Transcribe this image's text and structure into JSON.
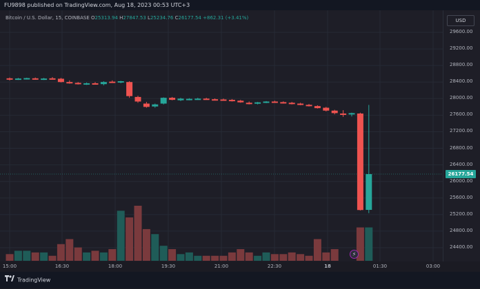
{
  "publish_bar": {
    "text": "FU9898 published on TradingView.com, Aug 18, 2023 00:53 UTC+3"
  },
  "legend": {
    "symbol": "Bitcoin / U.S. Dollar, 15, COINBASE",
    "o_label": "O",
    "o": "25313.94",
    "h_label": "H",
    "h": "27847.53",
    "l_label": "L",
    "l": "25234.76",
    "c_label": "C",
    "c": "26177.54",
    "change": "+862.31 (+3.41%)"
  },
  "currency_button": "USD",
  "price_axis": {
    "ticks": [
      "29600.00",
      "29200.00",
      "28800.00",
      "28400.00",
      "28000.00",
      "27600.00",
      "27200.00",
      "26800.00",
      "26400.00",
      "26000.00",
      "25600.00",
      "25200.00",
      "24800.00",
      "24400.00"
    ],
    "current_price": "26177.54"
  },
  "time_axis": {
    "labels": [
      "15:00",
      "16:30",
      "18:00",
      "19:30",
      "21:00",
      "22:30",
      "18",
      "01:30",
      "03:00"
    ]
  },
  "footer": {
    "brand": "TradingView"
  },
  "colors": {
    "up": "#26a69a",
    "down": "#ef5350",
    "up_volume": "#1f5c58",
    "down_volume": "#7a3a3d",
    "background": "#1e1e27"
  },
  "chart_data": {
    "type": "candlestick",
    "y_range": [
      24000,
      30000
    ],
    "candles": [
      {
        "o": 28490,
        "h": 28510,
        "l": 28440,
        "c": 28460,
        "dir": "down"
      },
      {
        "o": 28470,
        "h": 28500,
        "l": 28450,
        "c": 28485,
        "dir": "up"
      },
      {
        "o": 28480,
        "h": 28505,
        "l": 28460,
        "c": 28495,
        "dir": "up"
      },
      {
        "o": 28490,
        "h": 28510,
        "l": 28455,
        "c": 28470,
        "dir": "down"
      },
      {
        "o": 28470,
        "h": 28500,
        "l": 28450,
        "c": 28485,
        "dir": "up"
      },
      {
        "o": 28490,
        "h": 28520,
        "l": 28460,
        "c": 28470,
        "dir": "down"
      },
      {
        "o": 28480,
        "h": 28500,
        "l": 28390,
        "c": 28400,
        "dir": "down"
      },
      {
        "o": 28400,
        "h": 28440,
        "l": 28360,
        "c": 28380,
        "dir": "down"
      },
      {
        "o": 28380,
        "h": 28400,
        "l": 28340,
        "c": 28360,
        "dir": "down"
      },
      {
        "o": 28360,
        "h": 28390,
        "l": 28330,
        "c": 28370,
        "dir": "up"
      },
      {
        "o": 28370,
        "h": 28400,
        "l": 28340,
        "c": 28360,
        "dir": "down"
      },
      {
        "o": 28350,
        "h": 28420,
        "l": 28320,
        "c": 28400,
        "dir": "up"
      },
      {
        "o": 28410,
        "h": 28440,
        "l": 28380,
        "c": 28390,
        "dir": "down"
      },
      {
        "o": 28400,
        "h": 28430,
        "l": 28370,
        "c": 28420,
        "dir": "up"
      },
      {
        "o": 28400,
        "h": 28420,
        "l": 28020,
        "c": 28060,
        "dir": "down"
      },
      {
        "o": 28040,
        "h": 28070,
        "l": 27900,
        "c": 27930,
        "dir": "down"
      },
      {
        "o": 27880,
        "h": 27920,
        "l": 27780,
        "c": 27800,
        "dir": "down"
      },
      {
        "o": 27810,
        "h": 27880,
        "l": 27780,
        "c": 27860,
        "dir": "up"
      },
      {
        "o": 27880,
        "h": 28030,
        "l": 27860,
        "c": 28020,
        "dir": "up"
      },
      {
        "o": 28020,
        "h": 28040,
        "l": 27960,
        "c": 27970,
        "dir": "down"
      },
      {
        "o": 27960,
        "h": 28020,
        "l": 27940,
        "c": 28000,
        "dir": "up"
      },
      {
        "o": 27980,
        "h": 28010,
        "l": 27960,
        "c": 27995,
        "dir": "up"
      },
      {
        "o": 27990,
        "h": 28020,
        "l": 27970,
        "c": 28000,
        "dir": "up"
      },
      {
        "o": 28000,
        "h": 28020,
        "l": 27975,
        "c": 27985,
        "dir": "down"
      },
      {
        "o": 27985,
        "h": 28005,
        "l": 27965,
        "c": 27975,
        "dir": "down"
      },
      {
        "o": 27980,
        "h": 28000,
        "l": 27950,
        "c": 27965,
        "dir": "down"
      },
      {
        "o": 27970,
        "h": 27990,
        "l": 27930,
        "c": 27940,
        "dir": "down"
      },
      {
        "o": 27950,
        "h": 27970,
        "l": 27900,
        "c": 27910,
        "dir": "down"
      },
      {
        "o": 27900,
        "h": 27930,
        "l": 27860,
        "c": 27880,
        "dir": "down"
      },
      {
        "o": 27880,
        "h": 27920,
        "l": 27860,
        "c": 27910,
        "dir": "up"
      },
      {
        "o": 27910,
        "h": 27940,
        "l": 27890,
        "c": 27930,
        "dir": "up"
      },
      {
        "o": 27930,
        "h": 27950,
        "l": 27900,
        "c": 27910,
        "dir": "down"
      },
      {
        "o": 27915,
        "h": 27935,
        "l": 27880,
        "c": 27895,
        "dir": "down"
      },
      {
        "o": 27900,
        "h": 27920,
        "l": 27860,
        "c": 27870,
        "dir": "down"
      },
      {
        "o": 27880,
        "h": 27900,
        "l": 27840,
        "c": 27850,
        "dir": "down"
      },
      {
        "o": 27850,
        "h": 27870,
        "l": 27810,
        "c": 27820,
        "dir": "down"
      },
      {
        "o": 27820,
        "h": 27840,
        "l": 27760,
        "c": 27770,
        "dir": "down"
      },
      {
        "o": 27780,
        "h": 27800,
        "l": 27690,
        "c": 27710,
        "dir": "down"
      },
      {
        "o": 27710,
        "h": 27730,
        "l": 27620,
        "c": 27650,
        "dir": "down"
      },
      {
        "o": 27620,
        "h": 27720,
        "l": 27560,
        "c": 27640,
        "dir": "down"
      },
      {
        "o": 27620,
        "h": 27660,
        "l": 27570,
        "c": 27650,
        "dir": "up"
      },
      {
        "o": 27640,
        "h": 27660,
        "l": 25300,
        "c": 25310,
        "dir": "down"
      },
      {
        "o": 25313.94,
        "h": 27847.53,
        "l": 25234.76,
        "c": 26177.54,
        "dir": "up"
      }
    ],
    "volumes": [
      4,
      6,
      6,
      5,
      5,
      3,
      10,
      13,
      8,
      5,
      6,
      5,
      7,
      30,
      26,
      33,
      19,
      16,
      9,
      7,
      4,
      5,
      3,
      3,
      3,
      3,
      5,
      7,
      5,
      3,
      5,
      4,
      4,
      5,
      4,
      3,
      13,
      5,
      7,
      0,
      0,
      20,
      20
    ]
  }
}
